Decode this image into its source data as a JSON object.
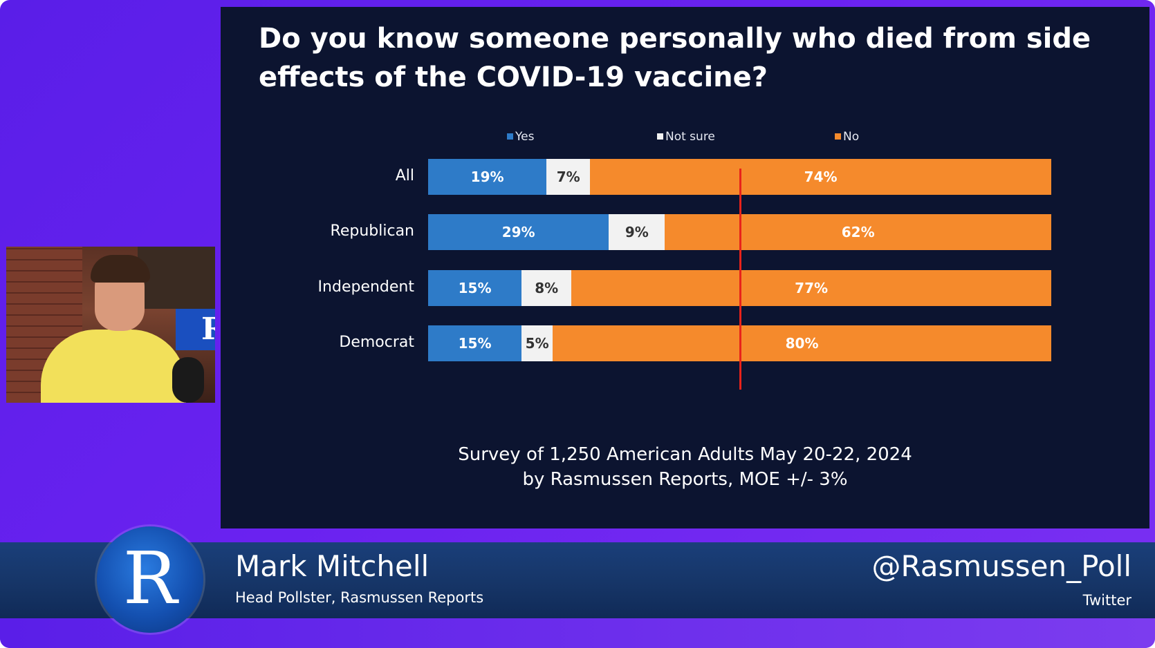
{
  "colors": {
    "yes": "#2e7bc8",
    "not_sure": "#f2f2f2",
    "no": "#f58a2c",
    "reference_line": "#e8231a",
    "slide_background": "#0c1430",
    "frame_background": "#6a22f0"
  },
  "chart_data": {
    "type": "bar",
    "orientation": "horizontal",
    "stacked": true,
    "title": "Do you know someone personally who died from side effects of the COVID-19 vaccine?",
    "categories": [
      "All",
      "Republican",
      "Independent",
      "Democrat"
    ],
    "series": [
      {
        "name": "Yes",
        "values": [
          19,
          29,
          15,
          15
        ],
        "labels": [
          "19%",
          "29%",
          "15%",
          "15%"
        ]
      },
      {
        "name": "Not sure",
        "values": [
          7,
          9,
          8,
          5
        ],
        "labels": [
          "7%",
          "9%",
          "8%",
          "5%"
        ]
      },
      {
        "name": "No",
        "values": [
          74,
          62,
          77,
          80
        ],
        "labels": [
          "74%",
          "62%",
          "77%",
          "80%"
        ]
      }
    ],
    "xlim": [
      0,
      100
    ],
    "reference_line_value": 50,
    "legend_position": "top",
    "grid": false,
    "note_lines": [
      "Survey of 1,250 American Adults May 20-22, 2024",
      "by Rasmussen Reports, MOE +/- 3%"
    ]
  },
  "lower_third": {
    "logo_letter": "R",
    "presenter_name": "Mark Mitchell",
    "presenter_role": "Head Pollster, Rasmussen Reports",
    "handle": "@Rasmussen_Poll",
    "handle_platform": "Twitter"
  },
  "webcam": {
    "monitor_letter": "R"
  }
}
